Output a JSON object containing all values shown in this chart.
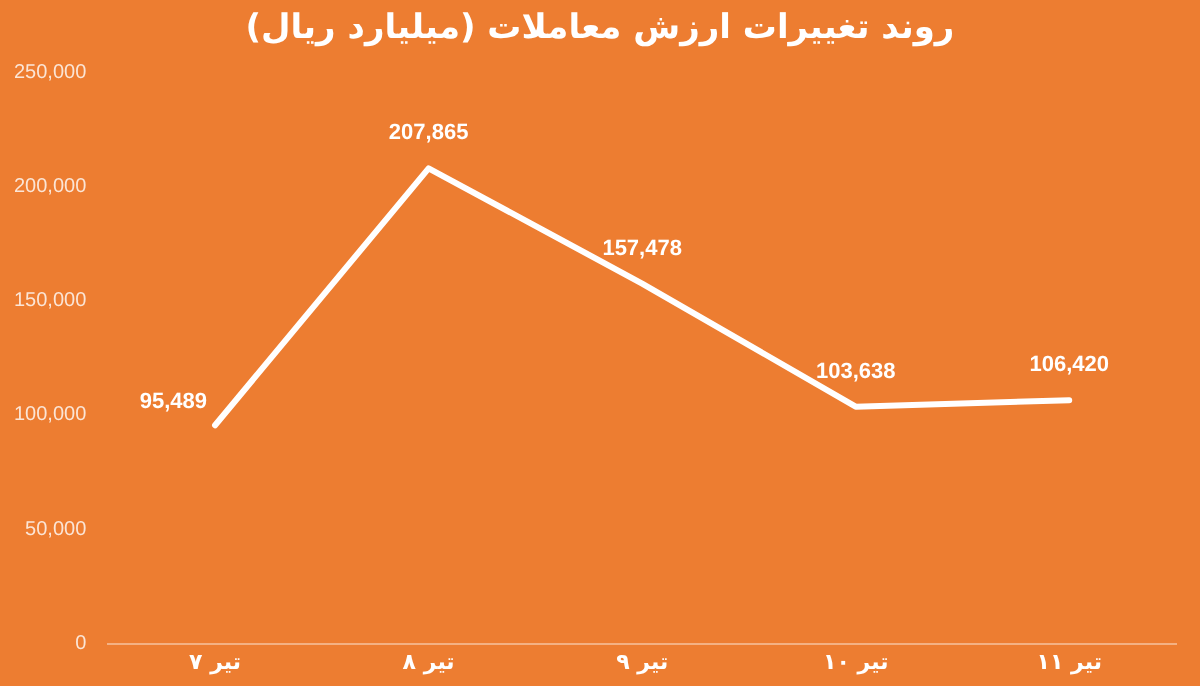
{
  "chart_data": {
    "type": "line",
    "title": "روند تغییرات ارزش معاملات (میلیارد ریال)",
    "categories": [
      "۷ تیر",
      "۸ تیر",
      "۹ تیر",
      "۱۰ تیر",
      "۱۱ تیر"
    ],
    "series": [
      {
        "color": "#ffffff",
        "values": [
          95489,
          207865,
          157478,
          103638,
          106420
        ]
      }
    ],
    "ylim": [
      0,
      250000
    ],
    "yticks": [
      {
        "value": 0,
        "label": "0"
      },
      {
        "value": 50000,
        "label": "50,000"
      },
      {
        "value": 100000,
        "label": "100,000"
      },
      {
        "value": 150000,
        "label": "150,000"
      },
      {
        "value": 200000,
        "label": "200,000"
      },
      {
        "value": 250000,
        "label": "250,000"
      }
    ],
    "value_labels": [
      "95,489",
      "207,865",
      "157,478",
      "103,638",
      "106,420"
    ],
    "grid": false,
    "legend": false,
    "marker": "none",
    "line_style": "solid"
  }
}
